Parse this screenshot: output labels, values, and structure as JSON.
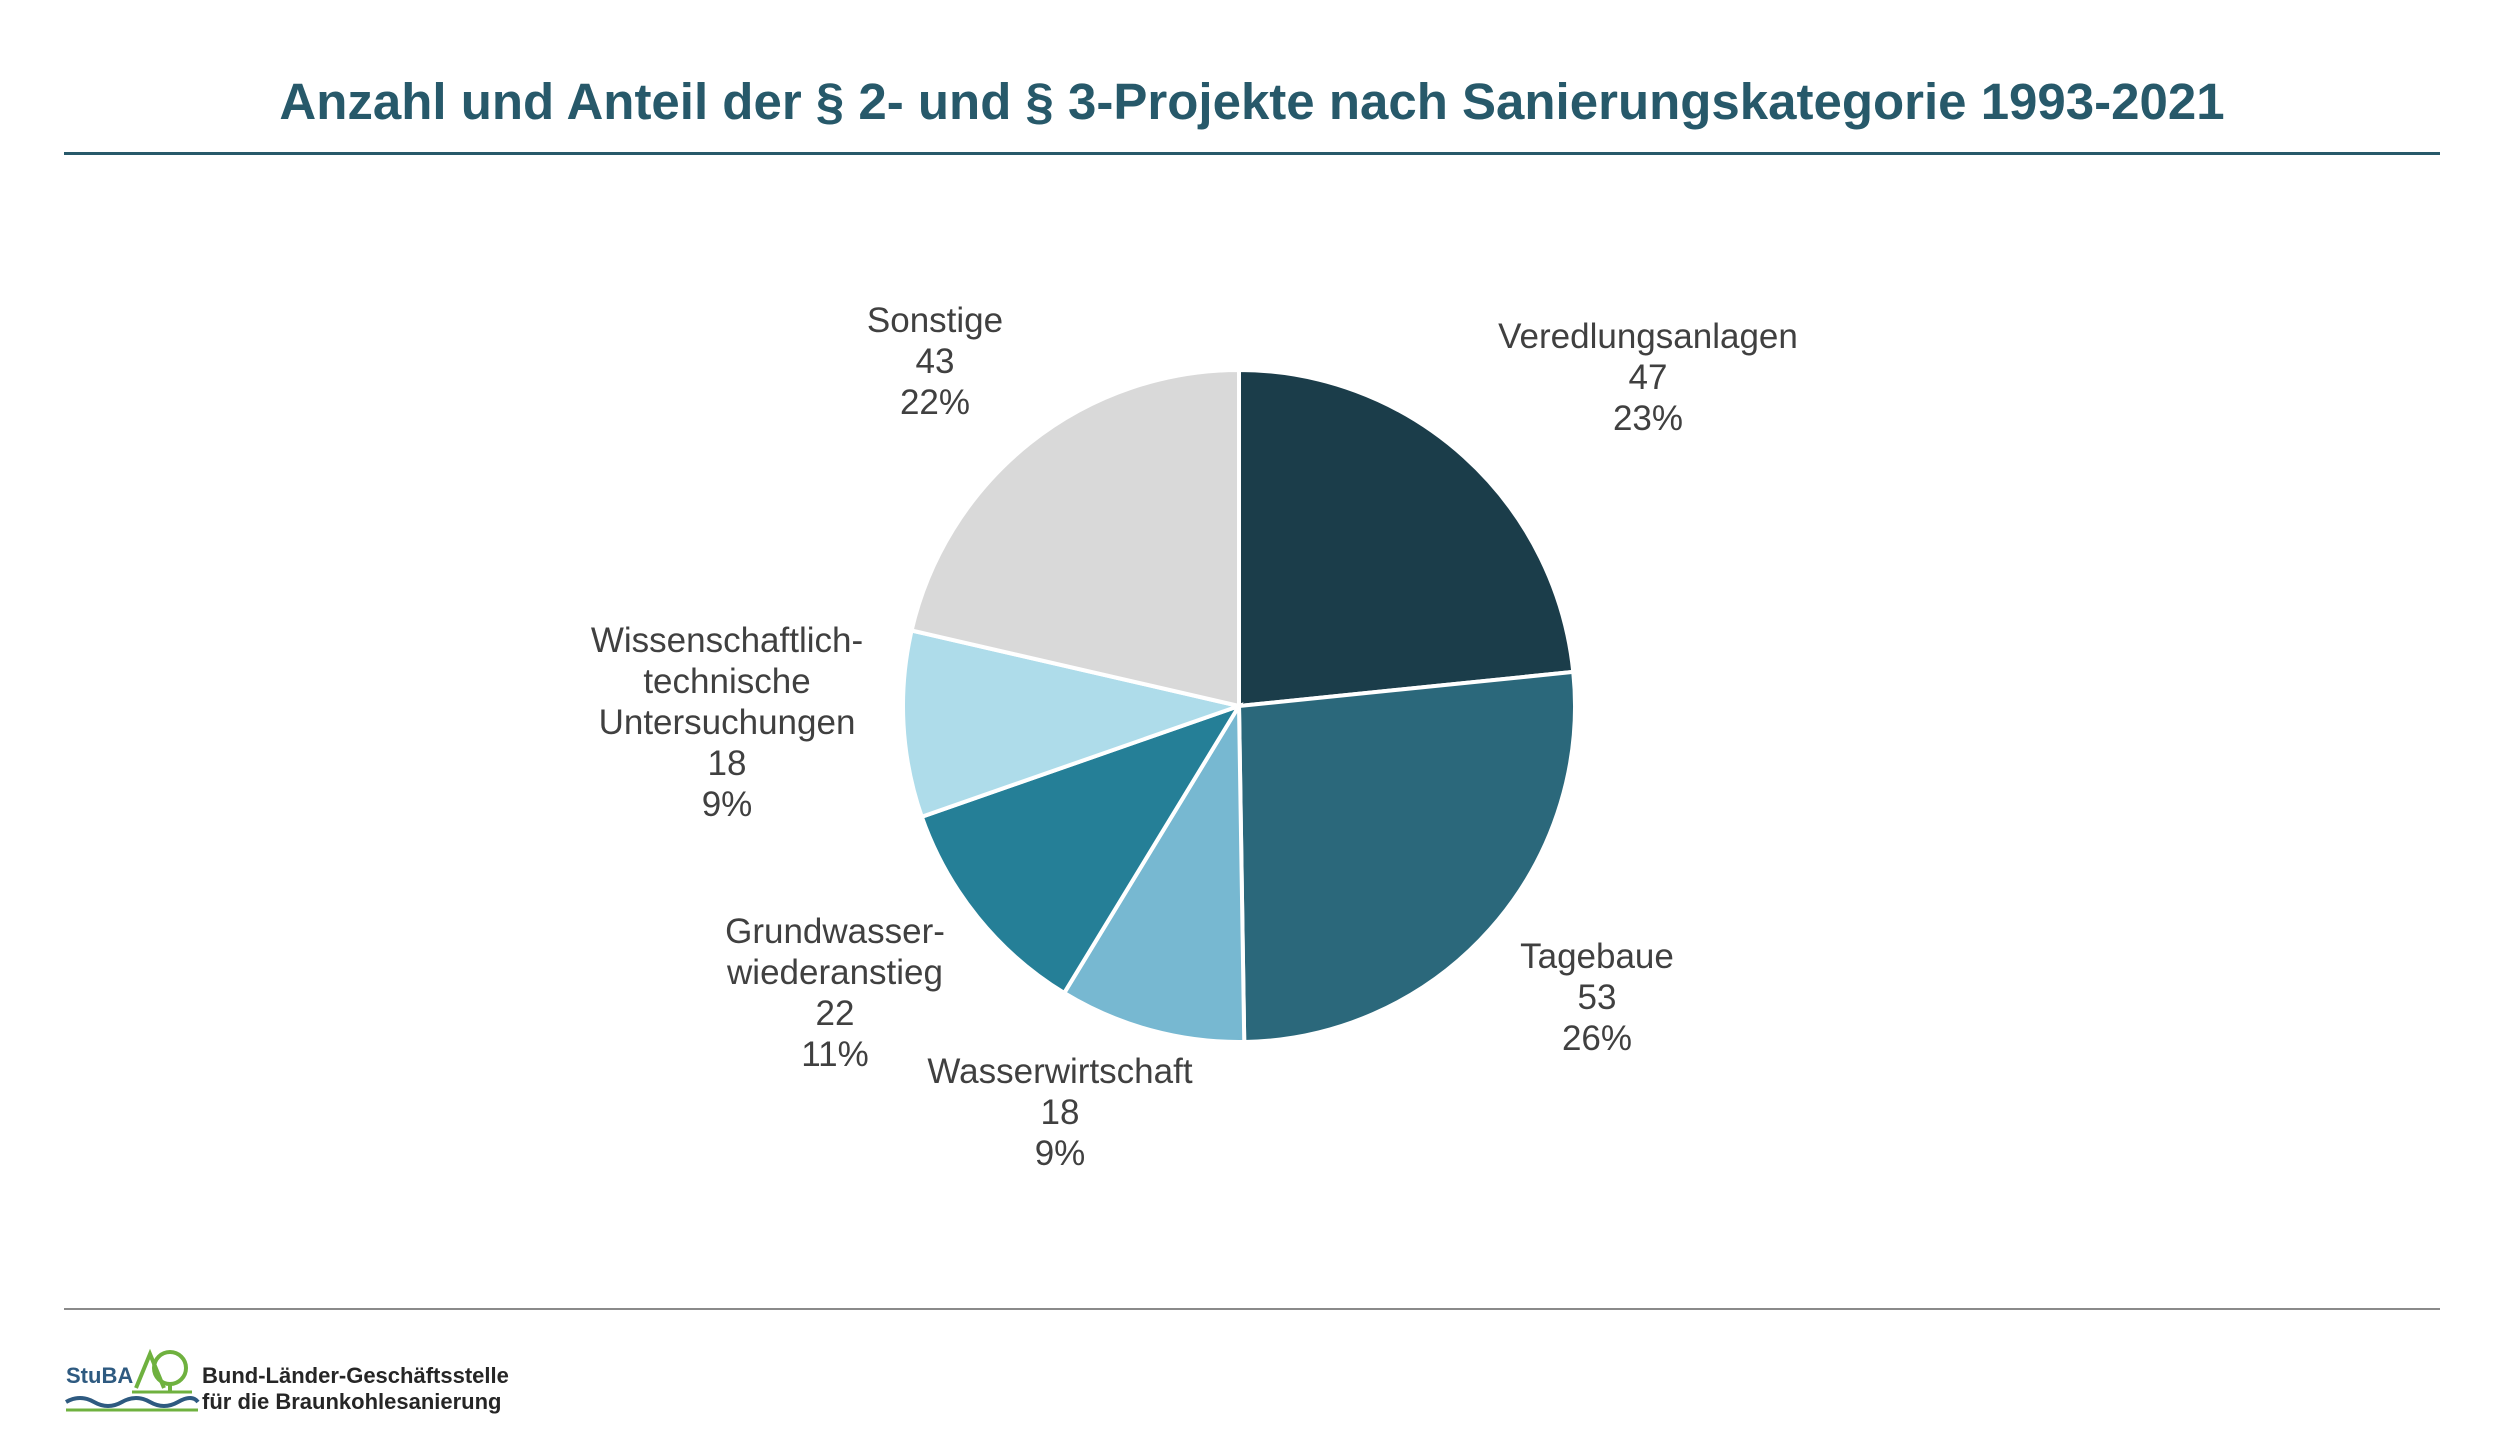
{
  "header": {
    "title": "Anzahl und Anteil der § 2- und § 3-Projekte nach Sanierungskategorie 1993-2021"
  },
  "chart_data": {
    "type": "pie",
    "title": "Anzahl und Anteil der § 2- und § 3-Projekte nach Sanierungskategorie 1993-2021",
    "start_angle_deg": 0,
    "direction": "clockwise",
    "slices": [
      {
        "label": [
          "Veredlungsanlagen"
        ],
        "value": 47,
        "percent": "23%",
        "color": "#1b3d4a"
      },
      {
        "label": [
          "Tagebaue"
        ],
        "value": 53,
        "percent": "26%",
        "color": "#2b687b"
      },
      {
        "label": [
          "Wasserwirtschaft"
        ],
        "value": 18,
        "percent": "9%",
        "color": "#77b8d1"
      },
      {
        "label": [
          "Grundwasser-",
          "wiederanstieg"
        ],
        "value": 22,
        "percent": "11%",
        "color": "#257f97"
      },
      {
        "label": [
          "Wissenschaftlich-",
          "technische",
          "Untersuchungen"
        ],
        "value": 18,
        "percent": "9%",
        "color": "#aedcea"
      },
      {
        "label": [
          "Sonstige"
        ],
        "value": 43,
        "percent": "22%",
        "color": "#d9d9d9"
      }
    ]
  },
  "footer": {
    "brand": "StuBA",
    "org_line1": "Bund-Länder-Geschäftsstelle",
    "org_line2": "für die Braunkohlesanierung",
    "brand_color": "#2e5a80",
    "logo_green": "#6fb13f"
  }
}
